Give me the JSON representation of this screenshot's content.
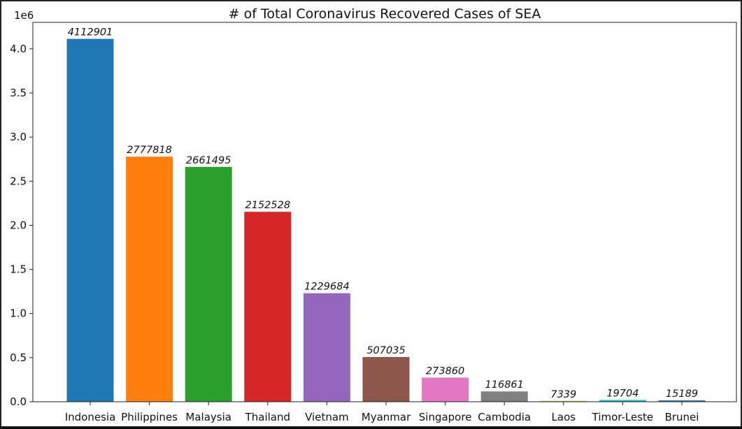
{
  "chart_data": {
    "type": "bar",
    "title": "# of Total Coronavirus Recovered Cases of SEA",
    "xlabel": "",
    "ylabel": "",
    "y_scale_label": "1e6",
    "ylim": [
      0,
      4.3
    ],
    "y_ticks": [
      "0.0",
      "0.5",
      "1.0",
      "1.5",
      "2.0",
      "2.5",
      "3.0",
      "3.5",
      "4.0"
    ],
    "categories": [
      "Indonesia",
      "Philippines",
      "Malaysia",
      "Thailand",
      "Vietnam",
      "Myanmar",
      "Singapore",
      "Cambodia",
      "Laos",
      "Timor-Leste",
      "Brunei"
    ],
    "values": [
      4112901,
      2777818,
      2661495,
      2152528,
      1229684,
      507035,
      273860,
      116861,
      7339,
      19704,
      15189
    ],
    "colors": [
      "#1f77b4",
      "#ff7f0e",
      "#2ca02c",
      "#d62728",
      "#9467bd",
      "#8c564b",
      "#e377c2",
      "#7f7f7f",
      "#bcbd22",
      "#17becf",
      "#1f77b4"
    ],
    "grid": false,
    "legend": "none"
  }
}
